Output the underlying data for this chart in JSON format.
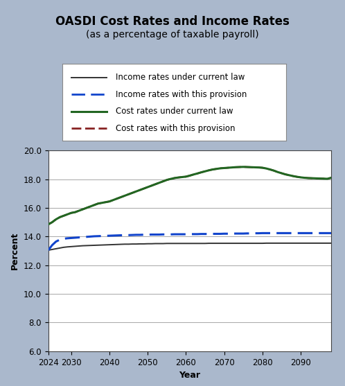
{
  "title": "OASDI Cost Rates and Income Rates",
  "subtitle": "(as a percentage of taxable payroll)",
  "xlabel": "Year",
  "ylabel": "Percent",
  "bg_color": "#aab8cc",
  "plot_bg_color": "#ffffff",
  "ylim": [
    6.0,
    20.0
  ],
  "yticks": [
    6.0,
    8.0,
    10.0,
    12.0,
    14.0,
    16.0,
    18.0,
    20.0
  ],
  "xticks": [
    2024,
    2030,
    2040,
    2050,
    2060,
    2070,
    2080,
    2090
  ],
  "years": [
    2024,
    2025,
    2026,
    2027,
    2028,
    2029,
    2030,
    2031,
    2032,
    2033,
    2034,
    2035,
    2036,
    2037,
    2038,
    2039,
    2040,
    2041,
    2042,
    2043,
    2044,
    2045,
    2046,
    2047,
    2048,
    2049,
    2050,
    2051,
    2052,
    2053,
    2054,
    2055,
    2056,
    2057,
    2058,
    2059,
    2060,
    2061,
    2062,
    2063,
    2064,
    2065,
    2066,
    2067,
    2068,
    2069,
    2070,
    2071,
    2072,
    2073,
    2074,
    2075,
    2076,
    2077,
    2078,
    2079,
    2080,
    2081,
    2082,
    2083,
    2084,
    2085,
    2086,
    2087,
    2088,
    2089,
    2090,
    2091,
    2092,
    2093,
    2094,
    2095,
    2096,
    2097,
    2098
  ],
  "income_current": [
    13.05,
    13.1,
    13.15,
    13.2,
    13.25,
    13.28,
    13.3,
    13.32,
    13.34,
    13.36,
    13.37,
    13.38,
    13.39,
    13.4,
    13.41,
    13.42,
    13.43,
    13.44,
    13.45,
    13.46,
    13.47,
    13.47,
    13.48,
    13.48,
    13.49,
    13.49,
    13.5,
    13.5,
    13.51,
    13.51,
    13.51,
    13.52,
    13.52,
    13.52,
    13.52,
    13.52,
    13.52,
    13.52,
    13.52,
    13.52,
    13.52,
    13.52,
    13.53,
    13.53,
    13.53,
    13.53,
    13.53,
    13.53,
    13.53,
    13.53,
    13.53,
    13.53,
    13.53,
    13.53,
    13.53,
    13.53,
    13.53,
    13.54,
    13.54,
    13.54,
    13.54,
    13.54,
    13.54,
    13.54,
    13.54,
    13.54,
    13.54,
    13.54,
    13.54,
    13.54,
    13.54,
    13.54,
    13.54,
    13.54,
    13.54
  ],
  "income_provision": [
    13.05,
    13.4,
    13.65,
    13.78,
    13.85,
    13.88,
    13.9,
    13.92,
    13.94,
    13.96,
    13.98,
    14.0,
    14.02,
    14.03,
    14.04,
    14.05,
    14.06,
    14.07,
    14.08,
    14.09,
    14.1,
    14.1,
    14.11,
    14.12,
    14.12,
    14.13,
    14.13,
    14.14,
    14.14,
    14.14,
    14.15,
    14.15,
    14.15,
    14.16,
    14.16,
    14.16,
    14.16,
    14.17,
    14.17,
    14.17,
    14.18,
    14.18,
    14.18,
    14.19,
    14.19,
    14.19,
    14.2,
    14.2,
    14.2,
    14.21,
    14.21,
    14.21,
    14.22,
    14.22,
    14.23,
    14.23,
    14.24,
    14.24,
    14.24,
    14.24,
    14.24,
    14.24,
    14.24,
    14.24,
    14.24,
    14.24,
    14.24,
    14.24,
    14.24,
    14.24,
    14.24,
    14.24,
    14.24,
    14.24,
    14.24
  ],
  "cost_current": [
    14.85,
    15.0,
    15.2,
    15.35,
    15.45,
    15.55,
    15.65,
    15.7,
    15.8,
    15.9,
    16.0,
    16.1,
    16.2,
    16.3,
    16.35,
    16.4,
    16.45,
    16.55,
    16.65,
    16.75,
    16.85,
    16.95,
    17.05,
    17.15,
    17.25,
    17.35,
    17.45,
    17.55,
    17.65,
    17.75,
    17.85,
    17.95,
    18.02,
    18.08,
    18.12,
    18.15,
    18.18,
    18.25,
    18.33,
    18.4,
    18.48,
    18.55,
    18.62,
    18.68,
    18.72,
    18.76,
    18.78,
    18.8,
    18.82,
    18.84,
    18.85,
    18.86,
    18.85,
    18.84,
    18.83,
    18.82,
    18.8,
    18.75,
    18.68,
    18.6,
    18.5,
    18.42,
    18.34,
    18.28,
    18.22,
    18.17,
    18.13,
    18.1,
    18.08,
    18.07,
    18.06,
    18.05,
    18.04,
    18.03,
    18.1
  ],
  "cost_provision": [
    14.85,
    15.0,
    15.2,
    15.35,
    15.45,
    15.55,
    15.65,
    15.7,
    15.8,
    15.9,
    16.0,
    16.1,
    16.2,
    16.3,
    16.35,
    16.4,
    16.45,
    16.55,
    16.65,
    16.75,
    16.85,
    16.95,
    17.05,
    17.15,
    17.25,
    17.35,
    17.45,
    17.55,
    17.65,
    17.75,
    17.85,
    17.95,
    18.02,
    18.08,
    18.12,
    18.15,
    18.18,
    18.25,
    18.33,
    18.4,
    18.48,
    18.55,
    18.62,
    18.68,
    18.72,
    18.76,
    18.78,
    18.8,
    18.82,
    18.84,
    18.85,
    18.86,
    18.85,
    18.84,
    18.83,
    18.82,
    18.8,
    18.75,
    18.68,
    18.6,
    18.5,
    18.42,
    18.34,
    18.28,
    18.22,
    18.17,
    18.13,
    18.1,
    18.08,
    18.07,
    18.06,
    18.05,
    18.04,
    18.03,
    18.1
  ],
  "income_current_color": "#333333",
  "income_provision_color": "#1144cc",
  "cost_current_color": "#226622",
  "cost_provision_color": "#882222",
  "legend_bg": "#ffffff",
  "title_fontsize": 12,
  "subtitle_fontsize": 10,
  "axis_label_fontsize": 9,
  "tick_fontsize": 8.5,
  "legend_fontsize": 8.5
}
